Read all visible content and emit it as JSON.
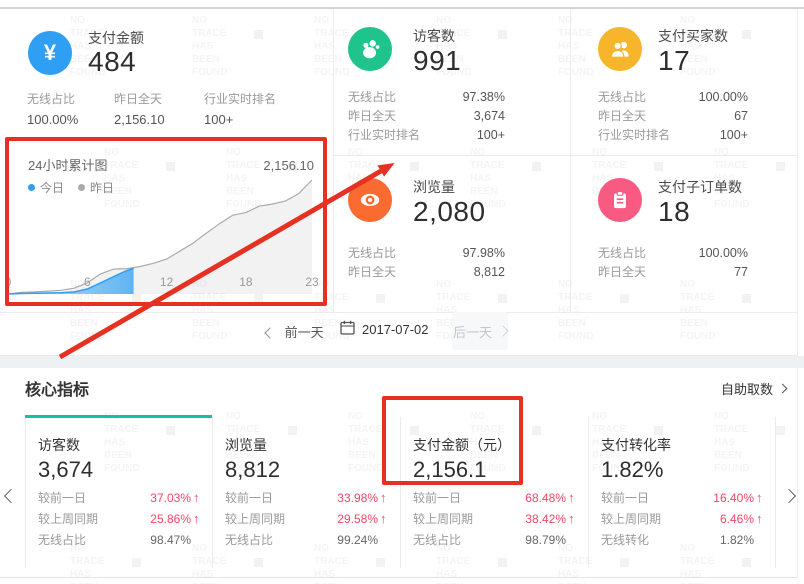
{
  "watermark": {
    "lines": [
      "NO",
      "TRACE",
      "HAS",
      "BEEN",
      "FOUND"
    ]
  },
  "colors": {
    "accent_blue": "#2e9ff3",
    "accent_green": "#1fc48c",
    "accent_yellow": "#f7b52c",
    "accent_orange": "#f96b31",
    "accent_pink": "#f85a82",
    "tab_active_green": "#13c2a3",
    "rose": "#ef4863",
    "annotation_red": "#e63022"
  },
  "summary_cards": [
    {
      "title": "支付金额",
      "value": "484",
      "icon": "yen-icon",
      "icon_glyph": "¥",
      "metrics": [
        {
          "label": "无线占比",
          "value": "100.00%"
        },
        {
          "label": "昨日全天",
          "value": "2,156.10"
        },
        {
          "label": "行业实时排名",
          "value": "100+"
        }
      ]
    },
    {
      "title": "访客数",
      "value": "991",
      "icon": "footprint-icon",
      "metrics": [
        {
          "label": "无线占比",
          "value": "97.38%"
        },
        {
          "label": "昨日全天",
          "value": "3,674"
        },
        {
          "label": "行业实时排名",
          "value": "100+"
        }
      ]
    },
    {
      "title": "支付买家数",
      "value": "17",
      "icon": "buyers-icon",
      "metrics": [
        {
          "label": "无线占比",
          "value": "100.00%"
        },
        {
          "label": "昨日全天",
          "value": "67"
        },
        {
          "label": "行业实时排名",
          "value": "100+"
        }
      ]
    },
    {
      "title": "浏览量",
      "value": "2,080",
      "icon": "eye-icon",
      "metrics": [
        {
          "label": "无线占比",
          "value": "97.98%"
        },
        {
          "label": "昨日全天",
          "value": "8,812"
        }
      ]
    },
    {
      "title": "支付子订单数",
      "value": "18",
      "icon": "clipboard-icon",
      "metrics": [
        {
          "label": "无线占比",
          "value": "100.00%"
        },
        {
          "label": "昨日全天",
          "value": "77"
        }
      ]
    }
  ],
  "chart": {
    "title": "24小时累计图",
    "legend": [
      {
        "label": "今日",
        "color": "#2e9ff3"
      },
      {
        "label": "昨日",
        "color": "#a9a9a9"
      }
    ],
    "peak_label": "2,156.10"
  },
  "chart_data": {
    "type": "area",
    "title": "24小时累计图",
    "xlabel": "hour",
    "ylim": [
      0,
      2156.1
    ],
    "x_ticks": [
      "0",
      "6",
      "12",
      "18",
      "23"
    ],
    "tick_hours": [
      0,
      6,
      12,
      18,
      23
    ],
    "series": [
      {
        "name": "今日",
        "color": "#2e9ff3",
        "x": [
          0,
          1,
          2,
          3,
          4,
          5,
          6,
          7,
          8,
          9,
          9.5
        ],
        "values": [
          0,
          10,
          14,
          18,
          24,
          38,
          95,
          210,
          330,
          445,
          484
        ]
      },
      {
        "name": "昨日",
        "color": "#ababab",
        "x": [
          0,
          1,
          2,
          3,
          4,
          5,
          6,
          7,
          8,
          9,
          10,
          11,
          12,
          13,
          14,
          15,
          16,
          17,
          18,
          19,
          20,
          21,
          22,
          23
        ],
        "values": [
          0,
          30,
          40,
          55,
          70,
          110,
          210,
          380,
          470,
          480,
          520,
          580,
          660,
          810,
          960,
          1150,
          1330,
          1490,
          1540,
          1660,
          1700,
          1760,
          1900,
          2156.1
        ]
      }
    ]
  },
  "date_nav": {
    "prev_label": "前一天",
    "date": "2017-07-02",
    "next_label": "后一天"
  },
  "core": {
    "title": "核心指标",
    "link_label": "自助取数",
    "cards": [
      {
        "title": "访客数",
        "value": "3,674",
        "active": true,
        "rows": [
          {
            "label": "较前一日",
            "value": "37.03%",
            "up": true
          },
          {
            "label": "较上周同期",
            "value": "25.86%",
            "up": true
          },
          {
            "label": "无线占比",
            "value": "98.47%",
            "up": false
          }
        ]
      },
      {
        "title": "浏览量",
        "value": "8,812",
        "active": false,
        "rows": [
          {
            "label": "较前一日",
            "value": "33.98%",
            "up": true
          },
          {
            "label": "较上周同期",
            "value": "29.58%",
            "up": true
          },
          {
            "label": "无线占比",
            "value": "99.24%",
            "up": false
          }
        ]
      },
      {
        "title": "支付金额（元）",
        "value": "2,156.1",
        "active": false,
        "rows": [
          {
            "label": "较前一日",
            "value": "68.48%",
            "up": true
          },
          {
            "label": "较上周同期",
            "value": "38.42%",
            "up": true
          },
          {
            "label": "无线占比",
            "value": "98.79%",
            "up": false
          }
        ]
      },
      {
        "title": "支付转化率",
        "value": "1.82%",
        "active": false,
        "rows": [
          {
            "label": "较前一日",
            "value": "16.40%",
            "up": true
          },
          {
            "label": "较上周同期",
            "value": "6.46%",
            "up": true
          },
          {
            "label": "无线转化",
            "value": "1.82%",
            "up": false
          }
        ]
      }
    ]
  },
  "arrow_glyph": "↑"
}
